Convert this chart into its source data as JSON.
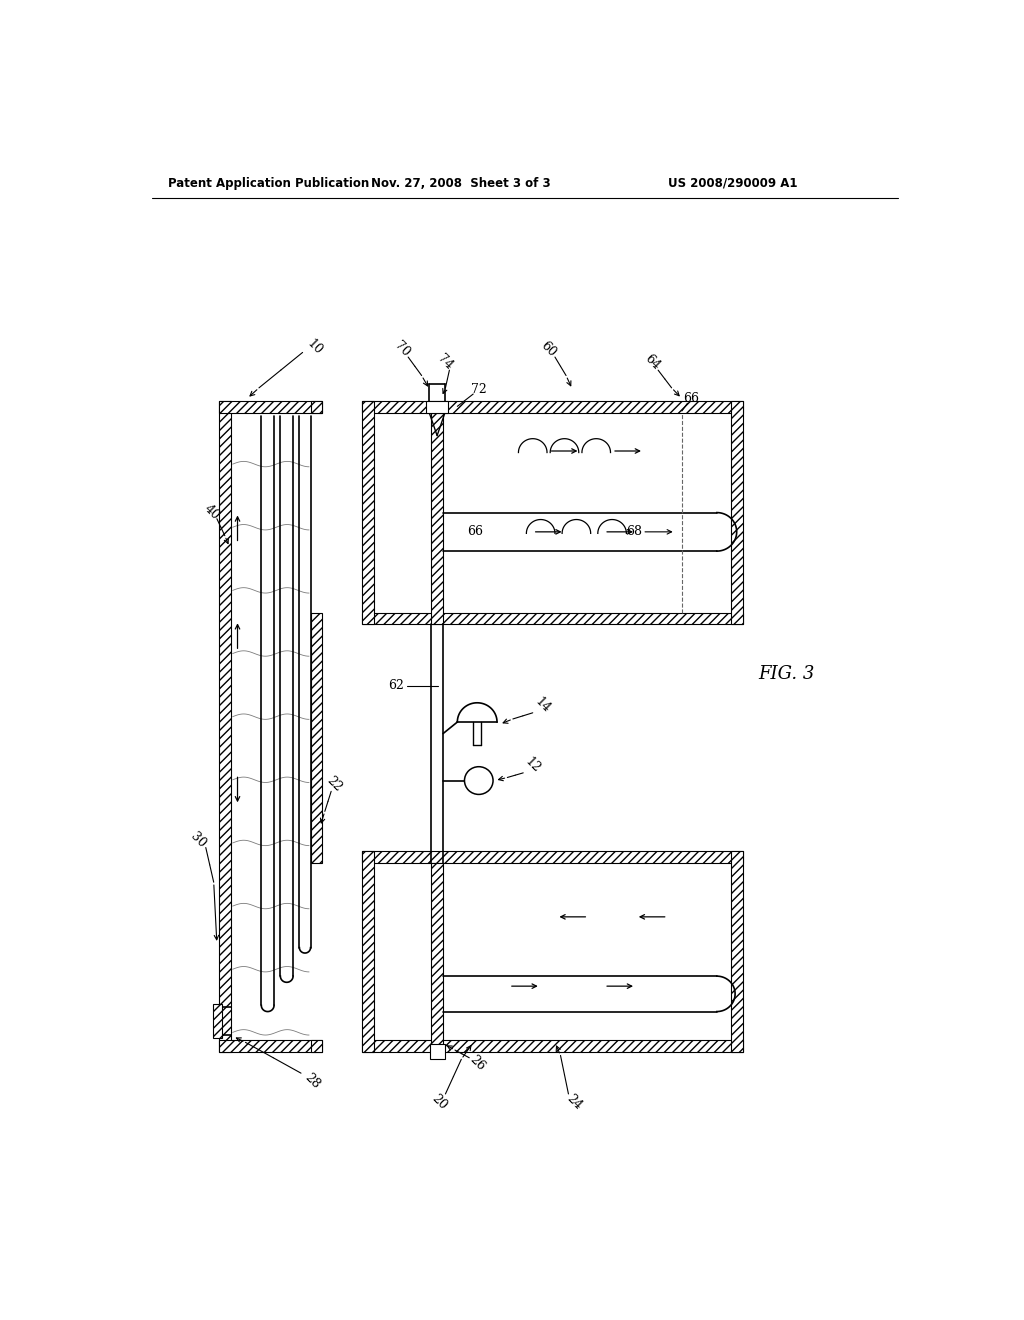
{
  "bg_color": "#ffffff",
  "line_color": "#000000",
  "title_left": "Patent Application Publication",
  "title_mid": "Nov. 27, 2008  Sheet 3 of 3",
  "title_right": "US 2008/290009 A1",
  "fig_label": "FIG. 3"
}
